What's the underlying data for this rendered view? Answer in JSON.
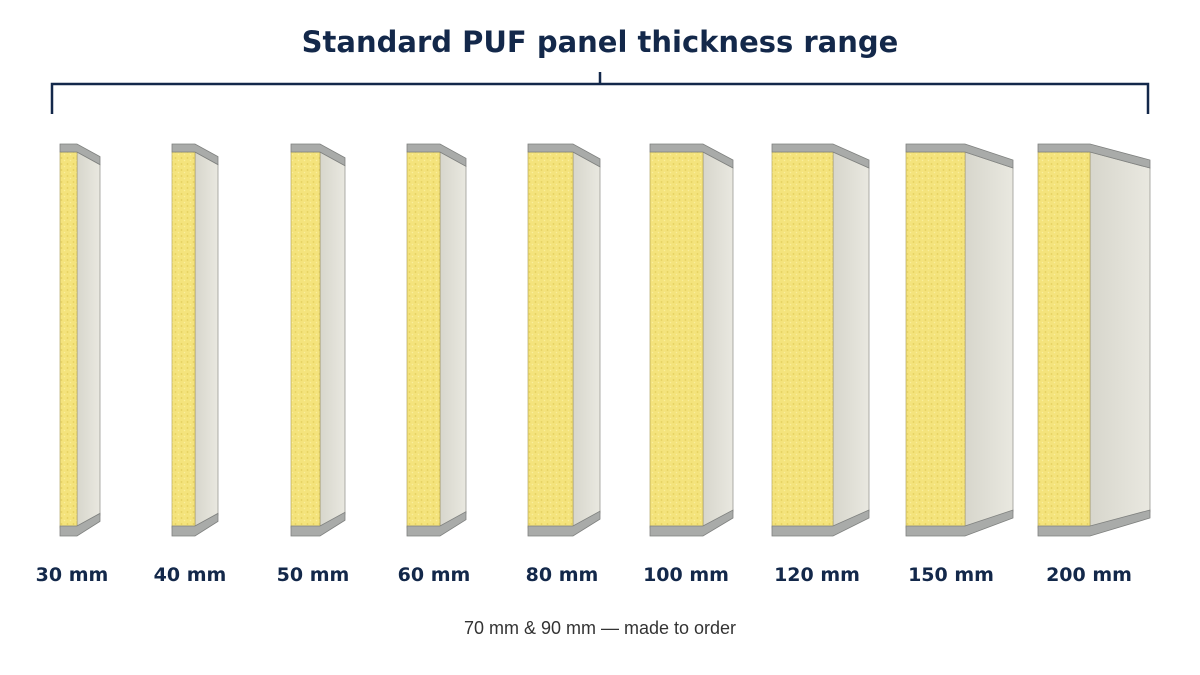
{
  "title": "Standard PUF panel thickness range",
  "panels": [
    "30 mm",
    "40 mm",
    "50 mm",
    "60 mm",
    "80 mm",
    "100 mm",
    "120 mm",
    "150 mm",
    "200 mm"
  ],
  "note": "70 mm & 90 mm — made to order"
}
